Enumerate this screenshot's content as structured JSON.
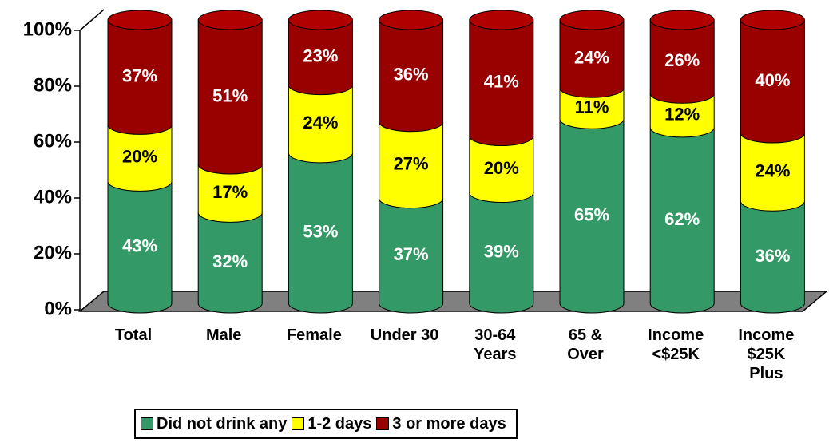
{
  "chart_data": {
    "type": "stacked_cylinder",
    "categories": [
      "Total",
      "Male",
      "Female",
      "Under 30",
      "30-64\nYears",
      "65 &\nOver",
      "Income\n<$25K",
      "Income\n$25K\nPlus"
    ],
    "series": [
      {
        "name": "Did not drink any",
        "color": "#339966",
        "values": [
          43,
          32,
          53,
          37,
          39,
          65,
          62,
          36
        ],
        "value_labels": [
          "43%",
          "32%",
          "53%",
          "37%",
          "39%",
          "65%",
          "62%",
          "36%"
        ]
      },
      {
        "name": "1-2 days",
        "color": "#ffff00",
        "values": [
          20,
          17,
          24,
          27,
          20,
          11,
          12,
          24
        ],
        "value_labels": [
          "20%",
          "17%",
          "24%",
          "27%",
          "20%",
          "11%",
          "12%",
          "24%"
        ]
      },
      {
        "name": "3 or more days",
        "color": "#990000",
        "values": [
          37,
          51,
          23,
          36,
          41,
          24,
          26,
          40
        ],
        "value_labels": [
          "37%",
          "51%",
          "23%",
          "36%",
          "41%",
          "24%",
          "26%",
          "40%"
        ]
      }
    ],
    "ylim": [
      0,
      100
    ],
    "yticks": [
      {
        "value": 0,
        "label": "0%"
      },
      {
        "value": 20,
        "label": "20%"
      },
      {
        "value": 40,
        "label": "40%"
      },
      {
        "value": 60,
        "label": "60%"
      },
      {
        "value": 80,
        "label": "80%"
      },
      {
        "value": 100,
        "label": "100%"
      }
    ]
  }
}
